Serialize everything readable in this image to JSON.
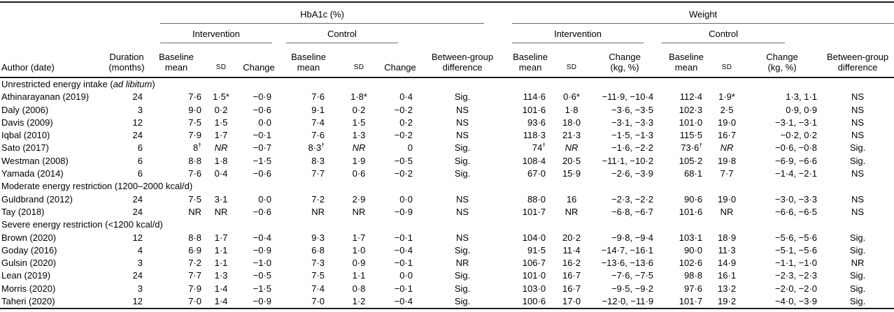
{
  "headers": {
    "hba1c_group": "HbA1c (%)",
    "weight_group": "Weight",
    "intervention": "Intervention",
    "control": "Control",
    "author": "Author (date)",
    "duration": "Duration\n(months)",
    "baseline_mean": "Baseline\nmean",
    "sd": "SD",
    "change": "Change",
    "change_kg": "Change\n(kg, %)",
    "between_group": "Between-group\ndifference"
  },
  "rows": [
    {
      "type": "section",
      "parts": [
        {
          "text": "Unrestricted energy intake ("
        },
        {
          "text": "ad libitum",
          "italic": true
        },
        {
          "text": ")"
        }
      ]
    },
    {
      "type": "study",
      "author": "Athinarayanan (2019)",
      "duration": "24",
      "cells": [
        "7·6",
        "1·5*",
        "−0·9",
        "7·6",
        "1·8*",
        "0·4",
        "Sig.",
        "114·6",
        "0·6*",
        "−11·9, −10·4",
        "112·4",
        "1·9*",
        "1·3, 1·1",
        "NS"
      ]
    },
    {
      "type": "study",
      "author": "Daly (2006)",
      "duration": "3",
      "cells": [
        "9·0",
        "0·2",
        "−0·6",
        "9·1",
        "0·2",
        "−0·2",
        "NS",
        "101·6",
        "1·8",
        "−3·6, −3·5",
        "102·3",
        "2·5",
        "0·9, 0·9",
        "NS"
      ]
    },
    {
      "type": "study",
      "author": "Davis (2009)",
      "duration": "12",
      "cells": [
        "7·5",
        "1·5",
        "0·0",
        "7·4",
        "1·5",
        "0·2",
        "NS",
        "93·6",
        "18·0",
        "−3·1, −3·3",
        "101·0",
        "19·0",
        "−3·1, −3·1",
        "NS"
      ]
    },
    {
      "type": "study",
      "author": "Iqbal (2010)",
      "duration": "24",
      "cells": [
        "7·9",
        "1·7",
        "−0·1",
        "7·6",
        "1·3",
        "−0·2",
        "NS",
        "118·3",
        "21·3",
        "−1·5, −1·3",
        "115·5",
        "16·7",
        "−0·2, 0·2",
        "NS"
      ]
    },
    {
      "type": "study",
      "author": "Sato (2017)",
      "duration": "6",
      "cells": [
        {
          "v": "8",
          "sup": "†"
        },
        {
          "v": "NR",
          "italic": true
        },
        "−0·7",
        {
          "v": "8·3",
          "sup": "†"
        },
        {
          "v": "NR",
          "italic": true
        },
        "0",
        "Sig.",
        {
          "v": "74",
          "sup": "†"
        },
        {
          "v": "NR",
          "italic": true
        },
        "−1·6, −2·2",
        {
          "v": "73·6",
          "sup": "†"
        },
        {
          "v": "NR",
          "italic": true
        },
        "−0·6, −0·8",
        "Sig."
      ]
    },
    {
      "type": "study",
      "author": "Westman (2008)",
      "duration": "6",
      "cells": [
        "8·8",
        "1·8",
        "−1·5",
        "8·3",
        "1·9",
        "−0·5",
        "Sig.",
        "108·4",
        "20·5",
        "−11·1, −10·2",
        "105·2",
        "19·8",
        "−6·9, −6·6",
        "Sig."
      ]
    },
    {
      "type": "study",
      "author": "Yamada (2014)",
      "duration": "6",
      "cells": [
        "7·6",
        "0·4",
        "−0·6",
        "7·7",
        "0·6",
        "−0·2",
        "Sig.",
        "67·0",
        "15·9",
        "−2·6, −3·9",
        "68·1",
        "7·7",
        "−1·4, −2·1",
        "NS"
      ]
    },
    {
      "type": "section",
      "parts": [
        {
          "text": "Moderate energy restriction (1200–2000 kcal/d)"
        }
      ]
    },
    {
      "type": "study",
      "author": "Guldbrand (2012)",
      "duration": "24",
      "cells": [
        "7·5",
        "3·1",
        "0·0",
        "7·2",
        "2·9",
        "0·0",
        "NS",
        "88·0",
        "16",
        "−2·3, −2·2",
        "90·6",
        "19·0",
        "−3·0, −3·3",
        "NS"
      ]
    },
    {
      "type": "study",
      "author": "Tay (2018)",
      "duration": "24",
      "cells": [
        "NR",
        "NR",
        "−0·6",
        "NR",
        "NR",
        "−0·9",
        "NS",
        "101·7",
        "NR",
        "−6·8, −6·7",
        "101·6",
        "NR",
        "−6·6, −6·5",
        "NS"
      ]
    },
    {
      "type": "section",
      "parts": [
        {
          "text": "Severe energy restriction (<1200 kcal/d)"
        }
      ]
    },
    {
      "type": "study",
      "author": "Brown (2020)",
      "duration": "12",
      "cells": [
        "8·8",
        "1·7",
        "−0·4",
        "9·3",
        "1·7",
        "−0·1",
        "NS",
        "104·0",
        "20·2",
        "−9·8, −9·4",
        "103·1",
        "18·9",
        "−5·6, −5·6",
        "Sig."
      ]
    },
    {
      "type": "study",
      "author": "Goday (2016)",
      "duration": "4",
      "cells": [
        "6·9",
        "1·1",
        "−0·9",
        "6·8",
        "1·0",
        "−0·4",
        "Sig.",
        "91·5",
        "11·4",
        "−14·7, −16·1",
        "90·0",
        "11·3",
        "−5·1, −5·6",
        "Sig."
      ]
    },
    {
      "type": "study",
      "author": "Gulsin (2020)",
      "duration": "3",
      "cells": [
        "7·2",
        "1·1",
        "−1·0",
        "7·3",
        "0·9",
        "−0·1",
        "NR",
        "106·7",
        "16·2",
        "−13·6, −13·6",
        "102·6",
        "14·9",
        "−1·1, −1·0",
        "NR"
      ]
    },
    {
      "type": "study",
      "author": "Lean (2019)",
      "duration": "24",
      "cells": [
        "7·7",
        "1·3",
        "−0·5",
        "7·5",
        "1·1",
        "0·0",
        "Sig.",
        "101·0",
        "16·7",
        "−7·6, −7·5",
        "98·8",
        "16·1",
        "−2·3, −2·3",
        "Sig."
      ]
    },
    {
      "type": "study",
      "author": "Morris (2020)",
      "duration": "3",
      "cells": [
        "7·9",
        "1·4",
        "−1·5",
        "7·4",
        "0·8",
        "−0·1",
        "Sig.",
        "103·0",
        "16·7",
        "−9·5, −9·2",
        "97·6",
        "13·2",
        "−2·0, −2·0",
        "Sig."
      ]
    },
    {
      "type": "study",
      "author": "Taheri (2020)",
      "duration": "12",
      "cells": [
        "7·0",
        "1·4",
        "−0·9",
        "7·0",
        "1·2",
        "−0·4",
        "Sig.",
        "100·6",
        "17·0",
        "−12·0, −11·9",
        "101·7",
        "19·2",
        "−4·0, −3·9",
        "Sig."
      ]
    }
  ]
}
